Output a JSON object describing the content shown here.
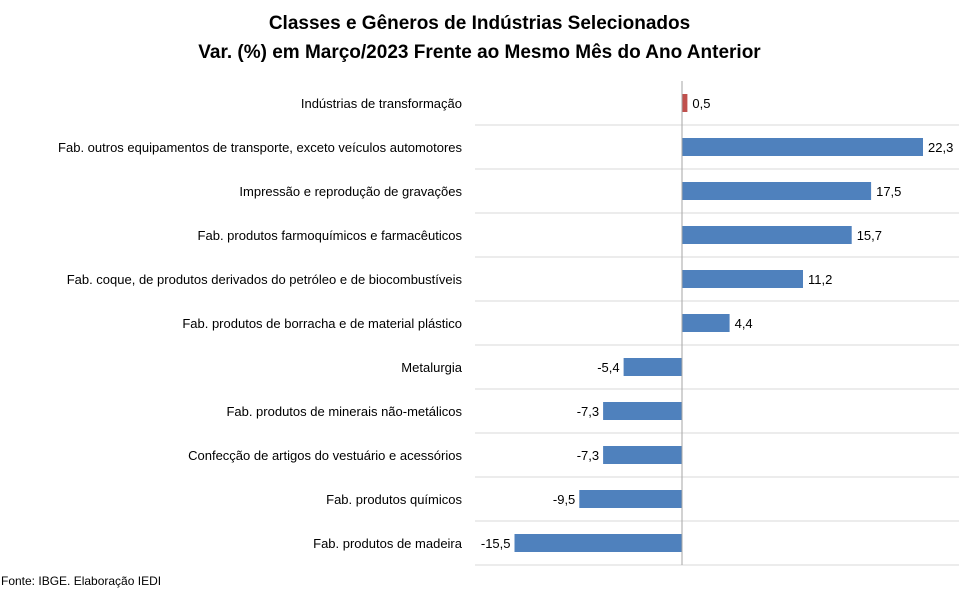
{
  "chart_data": {
    "type": "bar",
    "orientation": "horizontal",
    "title": "Classes e Gêneros de Indústrias Selecionados",
    "subtitle": "Var. (%) em Março/2023 Frente ao Mesmo Mês do Ano Anterior",
    "categories": [
      "Indústrias de transformação",
      "Fab. outros equipamentos de transporte, exceto veículos automotores",
      "Impressão e reprodução de gravações",
      "Fab. produtos farmoquímicos e farmacêuticos",
      "Fab. coque, de produtos derivados do petróleo e de biocombustíveis",
      "Fab. produtos de borracha e de material plástico",
      "Metalurgia",
      "Fab. produtos de minerais não-metálicos",
      "Confecção de artigos do vestuário e acessórios",
      "Fab. produtos químicos",
      "Fab. produtos de madeira"
    ],
    "values": [
      0.5,
      22.3,
      17.5,
      15.7,
      11.2,
      4.4,
      -5.4,
      -7.3,
      -7.3,
      -9.5,
      -15.5
    ],
    "value_labels": [
      "0,5",
      "22,3",
      "17,5",
      "15,7",
      "11,2",
      "4,4",
      "-5,4",
      "-7,3",
      "-7,3",
      "-9,5",
      "-15,5"
    ],
    "highlight_index": 0,
    "colors": {
      "bar": "#4F81BD",
      "highlight": "#C0504D",
      "grid": "#D9D9D9",
      "axis": "#A6A6A6"
    },
    "xlim": [
      -15.5,
      22.3
    ],
    "grid": "horizontal separators",
    "legend": "none"
  },
  "footer": {
    "source": "Fonte: IBGE. Elaboração IEDI"
  }
}
